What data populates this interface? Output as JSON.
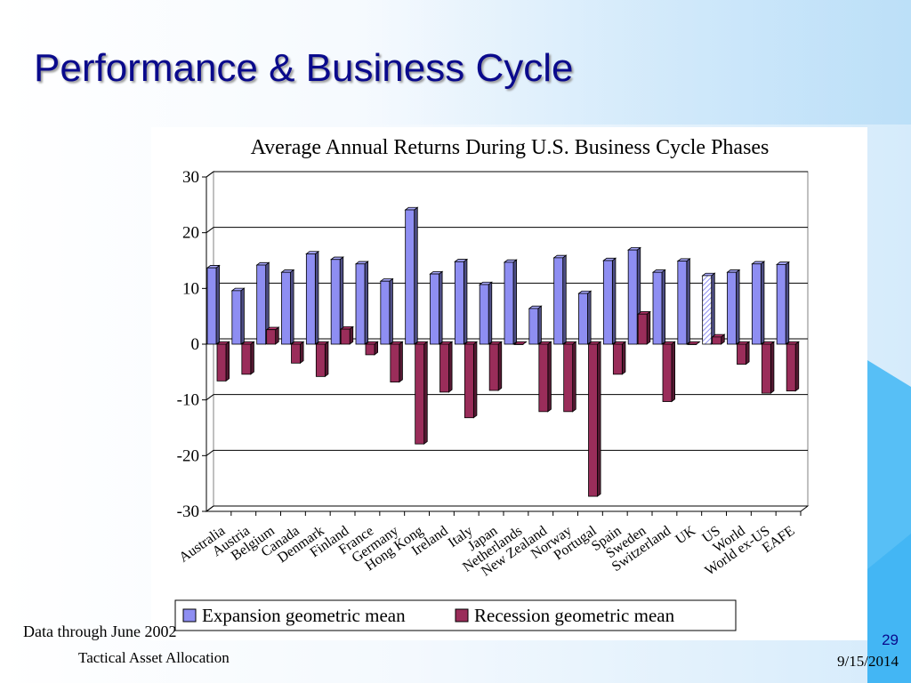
{
  "slide": {
    "title": "Performance  & Business Cycle",
    "footnote": "Data through June 2002",
    "footer_title": "Tactical Asset Allocation",
    "page_number": "29",
    "date": "9/15/2014"
  },
  "chart_data": {
    "type": "bar",
    "title": "Average Annual Returns During U.S. Business Cycle Phases",
    "xlabel": "",
    "ylabel": "",
    "ylim": [
      -30,
      30
    ],
    "yticks": [
      30,
      20,
      10,
      0,
      -10,
      -20,
      -30
    ],
    "grid": true,
    "legend_position": "bottom",
    "categories": [
      "Australia",
      "Austria",
      "Belgium",
      "Canada",
      "Denmark",
      "Finland",
      "France",
      "Germany",
      "Hong Kong",
      "Ireland",
      "Italy",
      "Japan",
      "Netherlands",
      "New Zealand",
      "Norway",
      "Portugal",
      "Spain",
      "Sweden",
      "Switzerland",
      "UK",
      "US",
      "World",
      "World ex-US",
      "EAFE"
    ],
    "series": [
      {
        "name": "Expansion geometric mean",
        "color": "#8e8ef2",
        "values": [
          13.7,
          9.6,
          14.2,
          12.9,
          16.2,
          15.2,
          14.4,
          11.3,
          24.1,
          12.6,
          14.8,
          10.7,
          14.7,
          6.4,
          15.5,
          9.1,
          15.0,
          16.9,
          12.9,
          14.9,
          12.3,
          12.9,
          14.4,
          14.3
        ]
      },
      {
        "name": "Recession geometric mean",
        "color": "#9a2d5a",
        "values": [
          -6.6,
          -5.4,
          2.6,
          -3.4,
          -5.8,
          2.7,
          -1.9,
          -6.8,
          -17.9,
          -8.6,
          -13.2,
          -8.3,
          0.0,
          -12.1,
          -12.1,
          -27.3,
          -5.4,
          5.4,
          -10.3,
          0.0,
          1.3,
          -3.6,
          -8.8,
          -8.4
        ]
      }
    ]
  }
}
